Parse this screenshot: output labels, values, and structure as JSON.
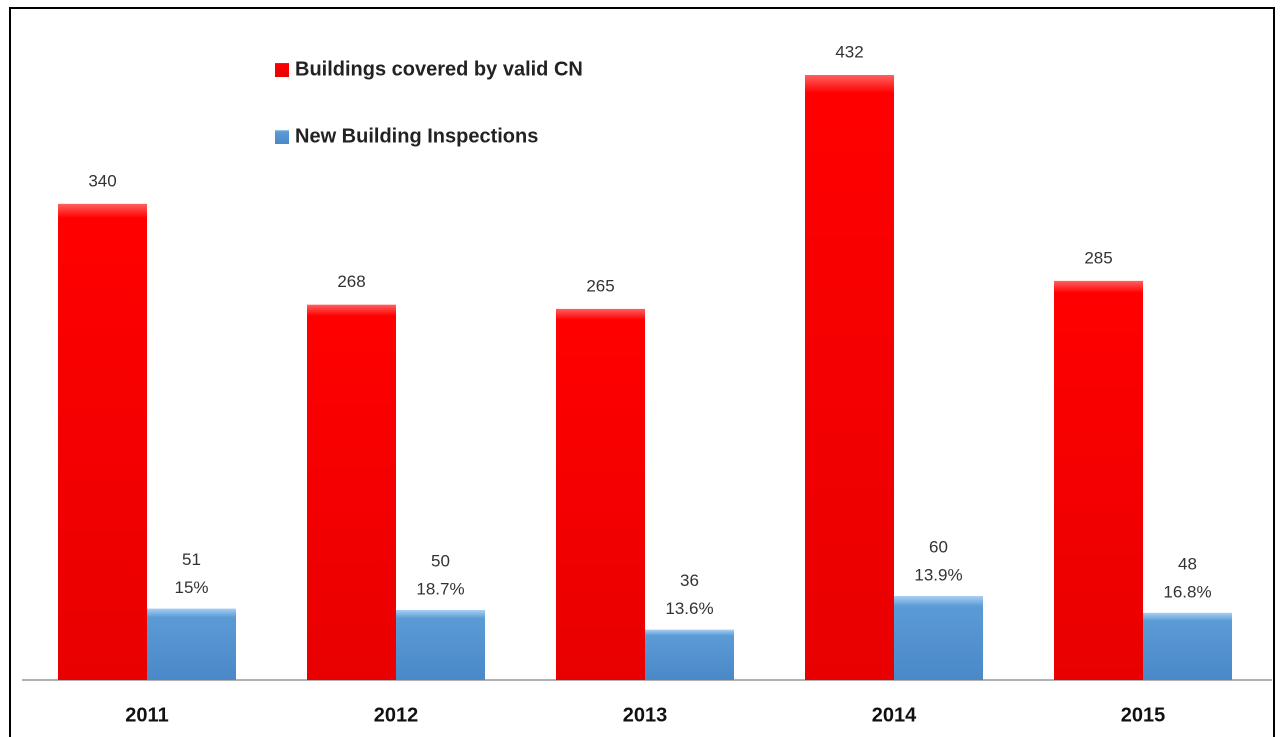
{
  "chart_data": {
    "type": "bar",
    "categories": [
      "2011",
      "2012",
      "2013",
      "2014",
      "2015"
    ],
    "series": [
      {
        "name": "Buildings covered by valid CN",
        "color": "#ff0000",
        "values": [
          340,
          268,
          265,
          432,
          285
        ]
      },
      {
        "name": "New Building Inspections",
        "color": "#5b9bd5",
        "values": [
          51,
          50,
          36,
          60,
          48
        ],
        "percent_labels": [
          "15%",
          "18.7%",
          "13.6%",
          "13.9%",
          "16.8%"
        ]
      }
    ]
  }
}
